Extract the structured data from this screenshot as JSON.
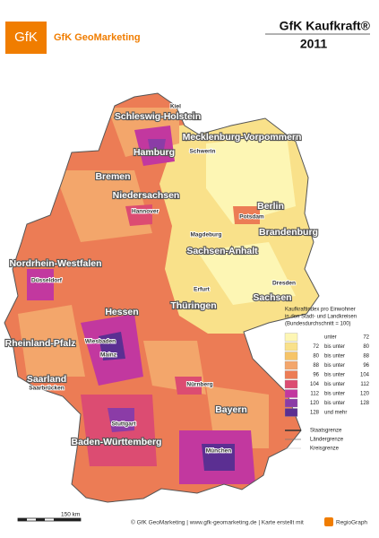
{
  "header": {
    "logo": "GfK",
    "brand": "GfK GeoMarketing",
    "title": "GfK Kaufkraft®",
    "year": "2011"
  },
  "states": [
    "Schleswig-Holstein",
    "Mecklenburg-Vorpommern",
    "Hamburg",
    "Bremen",
    "Niedersachsen",
    "Berlin",
    "Brandenburg",
    "Sachsen-Anhalt",
    "Nordrhein-Westfalen",
    "Hessen",
    "Thüringen",
    "Sachsen",
    "Rheinland-Pfalz",
    "Saarland",
    "Bayern",
    "Baden-Württemberg"
  ],
  "cities": [
    "Kiel",
    "Schwerin",
    "Hannover",
    "Potsdam",
    "Magdeburg",
    "Düsseldorf",
    "Erfurt",
    "Dresden",
    "Wiesbaden",
    "Mainz",
    "Saarbrücken",
    "Nürnberg",
    "Stuttgart",
    "München"
  ],
  "legend": {
    "title": [
      "Kaufkraftindex pro Einwohner",
      "in den Stadt- und Landkreisen",
      "(Bundesdurchschnitt = 100)"
    ],
    "items": [
      {
        "color": "#fdf6b4",
        "texts": [
          "unter",
          "72"
        ]
      },
      {
        "color": "#f9e18a",
        "texts": [
          "72",
          "bis unter",
          "80"
        ]
      },
      {
        "color": "#f6c468",
        "texts": [
          "80",
          "bis unter",
          "88"
        ]
      },
      {
        "color": "#f3a66b",
        "texts": [
          "88",
          "bis unter",
          "96"
        ]
      },
      {
        "color": "#ec7c55",
        "texts": [
          "96",
          "bis unter",
          "104"
        ]
      },
      {
        "color": "#dc4c72",
        "texts": [
          "104",
          "bis unter",
          "112"
        ]
      },
      {
        "color": "#c2389f",
        "texts": [
          "112",
          "bis unter",
          "120"
        ]
      },
      {
        "color": "#8b3ca7",
        "texts": [
          "120",
          "bis unter",
          "128"
        ]
      },
      {
        "color": "#5b2f92",
        "texts": [
          "128",
          "und mehr"
        ]
      }
    ],
    "borders": [
      "Staatsgrenze",
      "Ländergrenze",
      "Kreisgrenze"
    ]
  },
  "scale": "150 km",
  "footer": {
    "credit": "© GfK GeoMarketing | www.gfk-geomarketing.de | Karte erstellt mit",
    "tool": "RegioGraph"
  }
}
